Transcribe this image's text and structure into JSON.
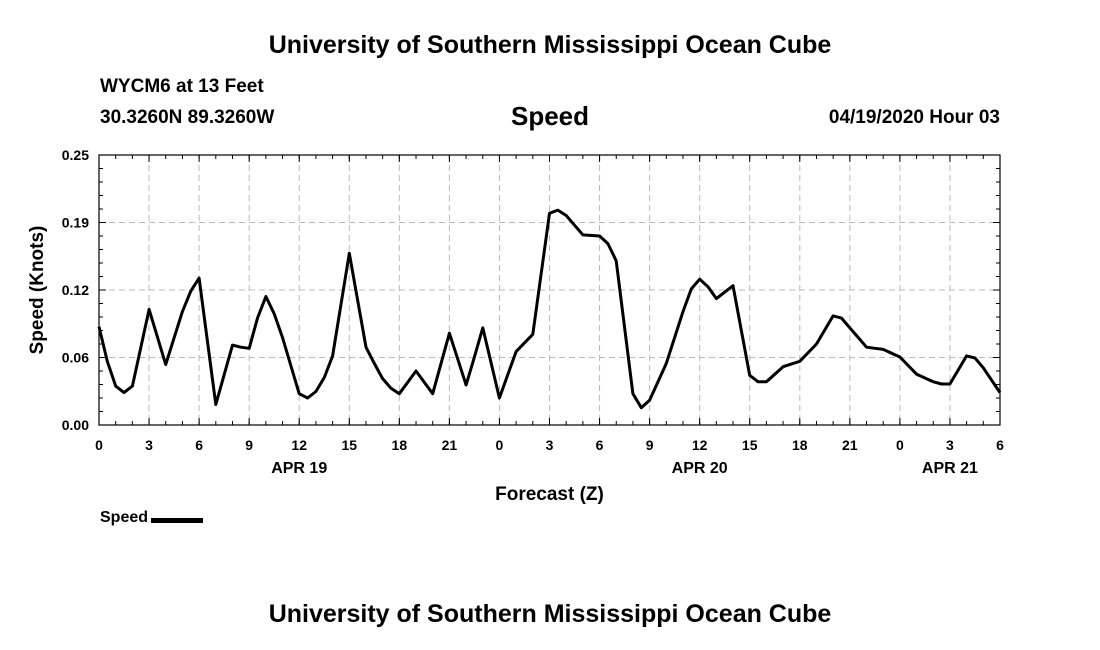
{
  "header": {
    "title": "University of Southern Mississippi Ocean Cube",
    "station": "WYCM6 at 13 Feet",
    "coords": "30.3260N 89.3260W",
    "variable": "Speed",
    "datetime": "04/19/2020 Hour 03"
  },
  "footer": {
    "title": "University of Southern Mississippi Ocean Cube"
  },
  "legend": {
    "label": "Speed"
  },
  "colors": {
    "line": "#000000",
    "grid": "#bbbbbb",
    "background": "#ffffff"
  },
  "chart_data": {
    "type": "line",
    "title": "Speed",
    "xlabel": "Forecast (Z)",
    "ylabel": "Speed (Knots)",
    "ylim": [
      0,
      0.25
    ],
    "xlim": [
      0,
      54
    ],
    "grid": true,
    "legend_position": "bottom-left",
    "yticks": [
      "0.00",
      "0.06",
      "0.12",
      "0.19",
      "0.25"
    ],
    "ytick_values": [
      0,
      0.0625,
      0.125,
      0.1875,
      0.25
    ],
    "xticks": [
      {
        "hour": 0,
        "label": "0"
      },
      {
        "hour": 3,
        "label": "3"
      },
      {
        "hour": 6,
        "label": "6"
      },
      {
        "hour": 9,
        "label": "9"
      },
      {
        "hour": 12,
        "label": "12"
      },
      {
        "hour": 15,
        "label": "15"
      },
      {
        "hour": 18,
        "label": "18"
      },
      {
        "hour": 21,
        "label": "21"
      },
      {
        "hour": 24,
        "label": "0"
      },
      {
        "hour": 27,
        "label": "3"
      },
      {
        "hour": 30,
        "label": "6"
      },
      {
        "hour": 33,
        "label": "9"
      },
      {
        "hour": 36,
        "label": "12"
      },
      {
        "hour": 39,
        "label": "15"
      },
      {
        "hour": 42,
        "label": "18"
      },
      {
        "hour": 45,
        "label": "21"
      },
      {
        "hour": 48,
        "label": "0"
      },
      {
        "hour": 51,
        "label": "3"
      },
      {
        "hour": 54,
        "label": "6"
      }
    ],
    "date_labels": [
      {
        "hour": 12,
        "label": "APR 19"
      },
      {
        "hour": 36,
        "label": "APR 20"
      },
      {
        "hour": 51,
        "label": "APR 21"
      }
    ],
    "series": [
      {
        "name": "Speed",
        "x": [
          0,
          0.5,
          1,
          1.5,
          2,
          3,
          4,
          5,
          5.5,
          6,
          7,
          8,
          8.5,
          9,
          9.5,
          10,
          10.5,
          11,
          12,
          12.5,
          13,
          13.5,
          14,
          15,
          16,
          16.5,
          17,
          17.5,
          18,
          19,
          20,
          21,
          22,
          22.5,
          23,
          24,
          25,
          26,
          27,
          27.5,
          28,
          28.5,
          29,
          30,
          30.5,
          31,
          32,
          32.5,
          33,
          33.5,
          34,
          35,
          35.5,
          36,
          36.5,
          37,
          38,
          39,
          39.5,
          40,
          41,
          42,
          43,
          44,
          44.5,
          45,
          45.5,
          46,
          46.5,
          47,
          48,
          49,
          50,
          50.5,
          51,
          52,
          52.5,
          53,
          54
        ],
        "values": [
          0.091,
          0.059,
          0.036,
          0.03,
          0.036,
          0.107,
          0.056,
          0.105,
          0.124,
          0.136,
          0.019,
          0.074,
          0.072,
          0.071,
          0.099,
          0.119,
          0.103,
          0.081,
          0.029,
          0.025,
          0.031,
          0.044,
          0.064,
          0.159,
          0.072,
          0.057,
          0.043,
          0.034,
          0.029,
          0.05,
          0.029,
          0.085,
          0.037,
          0.063,
          0.09,
          0.025,
          0.068,
          0.084,
          0.196,
          0.199,
          0.194,
          0.185,
          0.176,
          0.175,
          0.168,
          0.152,
          0.029,
          0.016,
          0.023,
          0.04,
          0.057,
          0.105,
          0.126,
          0.135,
          0.128,
          0.117,
          0.129,
          0.046,
          0.04,
          0.04,
          0.054,
          0.059,
          0.075,
          0.101,
          0.099,
          0.09,
          0.081,
          0.072,
          0.071,
          0.07,
          0.063,
          0.047,
          0.04,
          0.038,
          0.038,
          0.064,
          0.062,
          0.053,
          0.03
        ]
      }
    ]
  }
}
